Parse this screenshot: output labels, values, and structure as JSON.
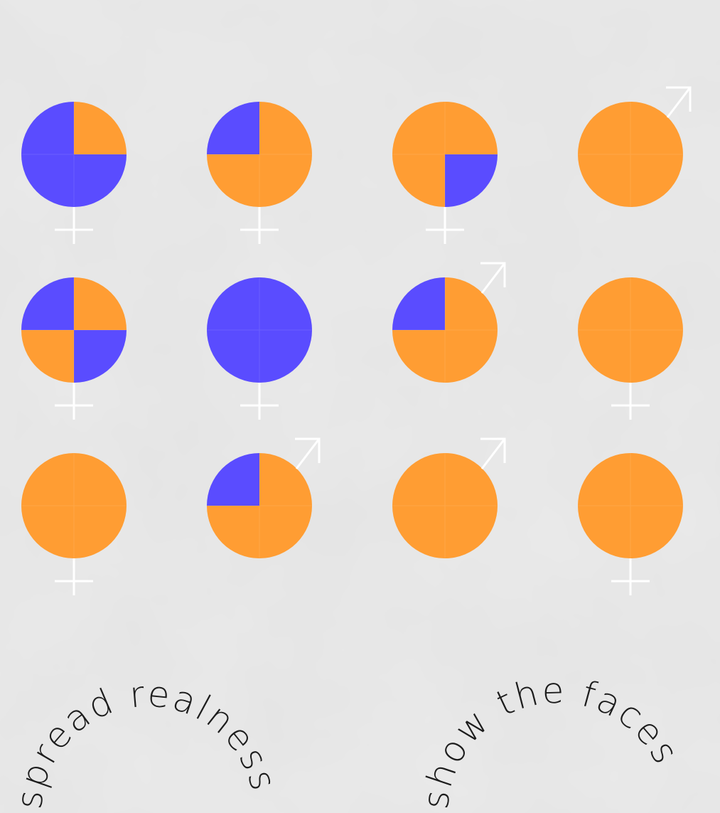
{
  "colors": {
    "background": "#e3e3e3",
    "orange": "#ff9d33",
    "blue": "#5a4cff",
    "symbol": "#ffffff",
    "text": "#1c1c1c"
  },
  "grid": [
    {
      "quarters": [
        "blue",
        "orange",
        "blue",
        "blue"
      ],
      "symbol": "venus-icon"
    },
    {
      "quarters": [
        "blue",
        "orange",
        "orange",
        "orange"
      ],
      "symbol": "venus-icon"
    },
    {
      "quarters": [
        "orange",
        "orange",
        "blue",
        "orange"
      ],
      "symbol": "venus-icon"
    },
    {
      "quarters": [
        "orange",
        "orange",
        "orange",
        "orange"
      ],
      "symbol": "mars-icon"
    },
    {
      "quarters": [
        "blue",
        "orange",
        "blue",
        "orange"
      ],
      "symbol": "venus-icon"
    },
    {
      "quarters": [
        "blue",
        "blue",
        "blue",
        "blue"
      ],
      "symbol": "venus-icon"
    },
    {
      "quarters": [
        "blue",
        "orange",
        "orange",
        "orange"
      ],
      "symbol": "mars-icon"
    },
    {
      "quarters": [
        "orange",
        "orange",
        "orange",
        "orange"
      ],
      "symbol": "venus-icon"
    },
    {
      "quarters": [
        "orange",
        "orange",
        "orange",
        "orange"
      ],
      "symbol": "venus-icon"
    },
    {
      "quarters": [
        "blue",
        "orange",
        "orange",
        "orange"
      ],
      "symbol": "mars-icon"
    },
    {
      "quarters": [
        "orange",
        "orange",
        "orange",
        "orange"
      ],
      "symbol": "mars-icon"
    },
    {
      "quarters": [
        "orange",
        "orange",
        "orange",
        "orange"
      ],
      "symbol": "venus-icon"
    }
  ],
  "slogans": {
    "left": "spread realness",
    "right": "show the faces"
  }
}
